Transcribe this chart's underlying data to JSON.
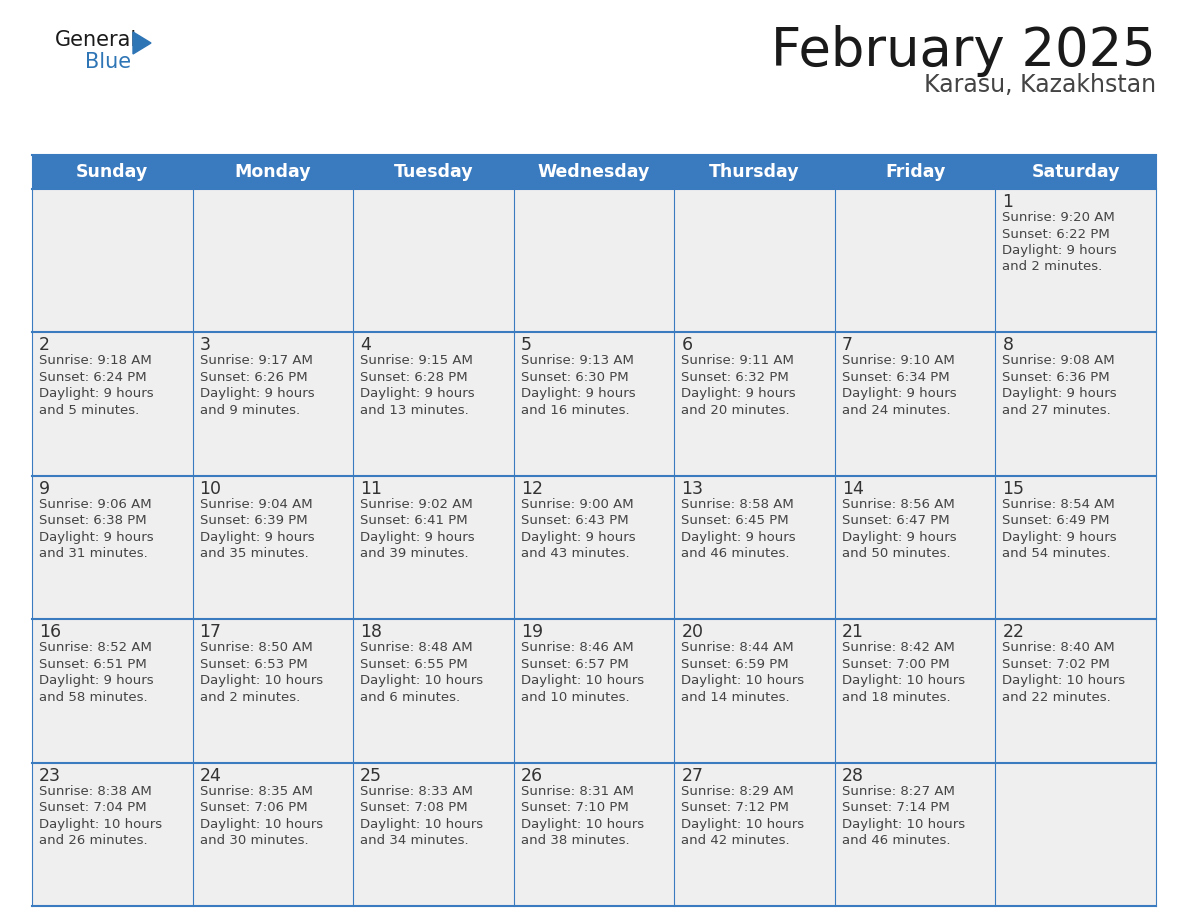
{
  "title": "February 2025",
  "subtitle": "Karasu, Kazakhstan",
  "days_of_week": [
    "Sunday",
    "Monday",
    "Tuesday",
    "Wednesday",
    "Thursday",
    "Friday",
    "Saturday"
  ],
  "header_bg_color": "#3a7abf",
  "header_text_color": "#ffffff",
  "cell_bg_color": "#efefef",
  "border_color": "#3a7abf",
  "title_color": "#1a1a1a",
  "subtitle_color": "#444444",
  "day_number_color": "#333333",
  "info_text_color": "#444444",
  "logo_general_color": "#1a1a1a",
  "logo_blue_color": "#2e75b6",
  "calendar_data": [
    [
      null,
      null,
      null,
      null,
      null,
      null,
      {
        "day": 1,
        "sunrise": "9:20 AM",
        "sunset": "6:22 PM",
        "daylight": "9 hours and 2 minutes"
      }
    ],
    [
      {
        "day": 2,
        "sunrise": "9:18 AM",
        "sunset": "6:24 PM",
        "daylight": "9 hours and 5 minutes"
      },
      {
        "day": 3,
        "sunrise": "9:17 AM",
        "sunset": "6:26 PM",
        "daylight": "9 hours and 9 minutes"
      },
      {
        "day": 4,
        "sunrise": "9:15 AM",
        "sunset": "6:28 PM",
        "daylight": "9 hours and 13 minutes"
      },
      {
        "day": 5,
        "sunrise": "9:13 AM",
        "sunset": "6:30 PM",
        "daylight": "9 hours and 16 minutes"
      },
      {
        "day": 6,
        "sunrise": "9:11 AM",
        "sunset": "6:32 PM",
        "daylight": "9 hours and 20 minutes"
      },
      {
        "day": 7,
        "sunrise": "9:10 AM",
        "sunset": "6:34 PM",
        "daylight": "9 hours and 24 minutes"
      },
      {
        "day": 8,
        "sunrise": "9:08 AM",
        "sunset": "6:36 PM",
        "daylight": "9 hours and 27 minutes"
      }
    ],
    [
      {
        "day": 9,
        "sunrise": "9:06 AM",
        "sunset": "6:38 PM",
        "daylight": "9 hours and 31 minutes"
      },
      {
        "day": 10,
        "sunrise": "9:04 AM",
        "sunset": "6:39 PM",
        "daylight": "9 hours and 35 minutes"
      },
      {
        "day": 11,
        "sunrise": "9:02 AM",
        "sunset": "6:41 PM",
        "daylight": "9 hours and 39 minutes"
      },
      {
        "day": 12,
        "sunrise": "9:00 AM",
        "sunset": "6:43 PM",
        "daylight": "9 hours and 43 minutes"
      },
      {
        "day": 13,
        "sunrise": "8:58 AM",
        "sunset": "6:45 PM",
        "daylight": "9 hours and 46 minutes"
      },
      {
        "day": 14,
        "sunrise": "8:56 AM",
        "sunset": "6:47 PM",
        "daylight": "9 hours and 50 minutes"
      },
      {
        "day": 15,
        "sunrise": "8:54 AM",
        "sunset": "6:49 PM",
        "daylight": "9 hours and 54 minutes"
      }
    ],
    [
      {
        "day": 16,
        "sunrise": "8:52 AM",
        "sunset": "6:51 PM",
        "daylight": "9 hours and 58 minutes"
      },
      {
        "day": 17,
        "sunrise": "8:50 AM",
        "sunset": "6:53 PM",
        "daylight": "10 hours and 2 minutes"
      },
      {
        "day": 18,
        "sunrise": "8:48 AM",
        "sunset": "6:55 PM",
        "daylight": "10 hours and 6 minutes"
      },
      {
        "day": 19,
        "sunrise": "8:46 AM",
        "sunset": "6:57 PM",
        "daylight": "10 hours and 10 minutes"
      },
      {
        "day": 20,
        "sunrise": "8:44 AM",
        "sunset": "6:59 PM",
        "daylight": "10 hours and 14 minutes"
      },
      {
        "day": 21,
        "sunrise": "8:42 AM",
        "sunset": "7:00 PM",
        "daylight": "10 hours and 18 minutes"
      },
      {
        "day": 22,
        "sunrise": "8:40 AM",
        "sunset": "7:02 PM",
        "daylight": "10 hours and 22 minutes"
      }
    ],
    [
      {
        "day": 23,
        "sunrise": "8:38 AM",
        "sunset": "7:04 PM",
        "daylight": "10 hours and 26 minutes"
      },
      {
        "day": 24,
        "sunrise": "8:35 AM",
        "sunset": "7:06 PM",
        "daylight": "10 hours and 30 minutes"
      },
      {
        "day": 25,
        "sunrise": "8:33 AM",
        "sunset": "7:08 PM",
        "daylight": "10 hours and 34 minutes"
      },
      {
        "day": 26,
        "sunrise": "8:31 AM",
        "sunset": "7:10 PM",
        "daylight": "10 hours and 38 minutes"
      },
      {
        "day": 27,
        "sunrise": "8:29 AM",
        "sunset": "7:12 PM",
        "daylight": "10 hours and 42 minutes"
      },
      {
        "day": 28,
        "sunrise": "8:27 AM",
        "sunset": "7:14 PM",
        "daylight": "10 hours and 46 minutes"
      },
      null
    ]
  ]
}
